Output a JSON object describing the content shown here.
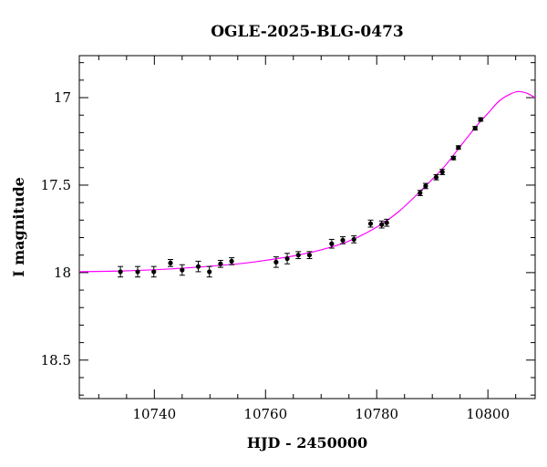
{
  "chart_data": {
    "type": "scatter",
    "title": "OGLE-2025-BLG-0473",
    "xlabel": "HJD - 2450000",
    "ylabel": "I magnitude",
    "xlim": [
      10726.5,
      10808.5
    ],
    "ylim": [
      18.72,
      16.76
    ],
    "y_inverted": true,
    "x_major_ticks": [
      10740,
      10760,
      10780,
      10800
    ],
    "x_tick_labels": [
      "10740",
      "10760",
      "10780",
      "10800"
    ],
    "x_minor_step": 5,
    "y_major_ticks": [
      17,
      17.5,
      18,
      18.5
    ],
    "y_tick_labels": [
      "17",
      "17.5",
      "18",
      "18.5"
    ],
    "y_minor_step": 0.1,
    "grid": false,
    "series": [
      {
        "kind": "points_with_errorbars",
        "color": "#000000",
        "points": [
          {
            "x": 10733.9,
            "y": 17.995,
            "err": 0.03
          },
          {
            "x": 10737.0,
            "y": 17.995,
            "err": 0.03
          },
          {
            "x": 10739.9,
            "y": 17.995,
            "err": 0.03
          },
          {
            "x": 10742.9,
            "y": 17.945,
            "err": 0.02
          },
          {
            "x": 10745.0,
            "y": 17.985,
            "err": 0.03
          },
          {
            "x": 10747.9,
            "y": 17.965,
            "err": 0.03
          },
          {
            "x": 10749.9,
            "y": 17.995,
            "err": 0.03
          },
          {
            "x": 10751.9,
            "y": 17.95,
            "err": 0.02
          },
          {
            "x": 10753.9,
            "y": 17.935,
            "err": 0.02
          },
          {
            "x": 10761.9,
            "y": 17.94,
            "err": 0.03
          },
          {
            "x": 10763.9,
            "y": 17.92,
            "err": 0.03
          },
          {
            "x": 10765.9,
            "y": 17.9,
            "err": 0.02
          },
          {
            "x": 10767.9,
            "y": 17.9,
            "err": 0.02
          },
          {
            "x": 10771.9,
            "y": 17.835,
            "err": 0.025
          },
          {
            "x": 10773.9,
            "y": 17.815,
            "err": 0.02
          },
          {
            "x": 10775.9,
            "y": 17.81,
            "err": 0.02
          },
          {
            "x": 10778.9,
            "y": 17.72,
            "err": 0.02
          },
          {
            "x": 10780.9,
            "y": 17.725,
            "err": 0.02
          },
          {
            "x": 10781.8,
            "y": 17.715,
            "err": 0.02
          },
          {
            "x": 10787.8,
            "y": 17.545,
            "err": 0.015
          },
          {
            "x": 10788.8,
            "y": 17.505,
            "err": 0.015
          },
          {
            "x": 10790.7,
            "y": 17.455,
            "err": 0.015
          },
          {
            "x": 10791.8,
            "y": 17.425,
            "err": 0.015
          },
          {
            "x": 10793.8,
            "y": 17.345,
            "err": 0.01
          },
          {
            "x": 10794.7,
            "y": 17.285,
            "err": 0.01
          },
          {
            "x": 10797.7,
            "y": 17.175,
            "err": 0.01
          },
          {
            "x": 10798.7,
            "y": 17.125,
            "err": 0.01
          }
        ]
      },
      {
        "kind": "model_curve",
        "color": "#ff00ff",
        "x": [
          10726.5,
          10735,
          10745,
          10755,
          10760,
          10765,
          10770,
          10775,
          10780,
          10784,
          10788,
          10792,
          10795,
          10798,
          10800,
          10802,
          10804,
          10805.5,
          10807,
          10808.5
        ],
        "y": [
          17.995,
          17.99,
          17.975,
          17.95,
          17.93,
          17.905,
          17.87,
          17.82,
          17.74,
          17.65,
          17.53,
          17.4,
          17.28,
          17.16,
          17.09,
          17.02,
          16.98,
          16.965,
          16.975,
          17.0
        ]
      }
    ]
  }
}
